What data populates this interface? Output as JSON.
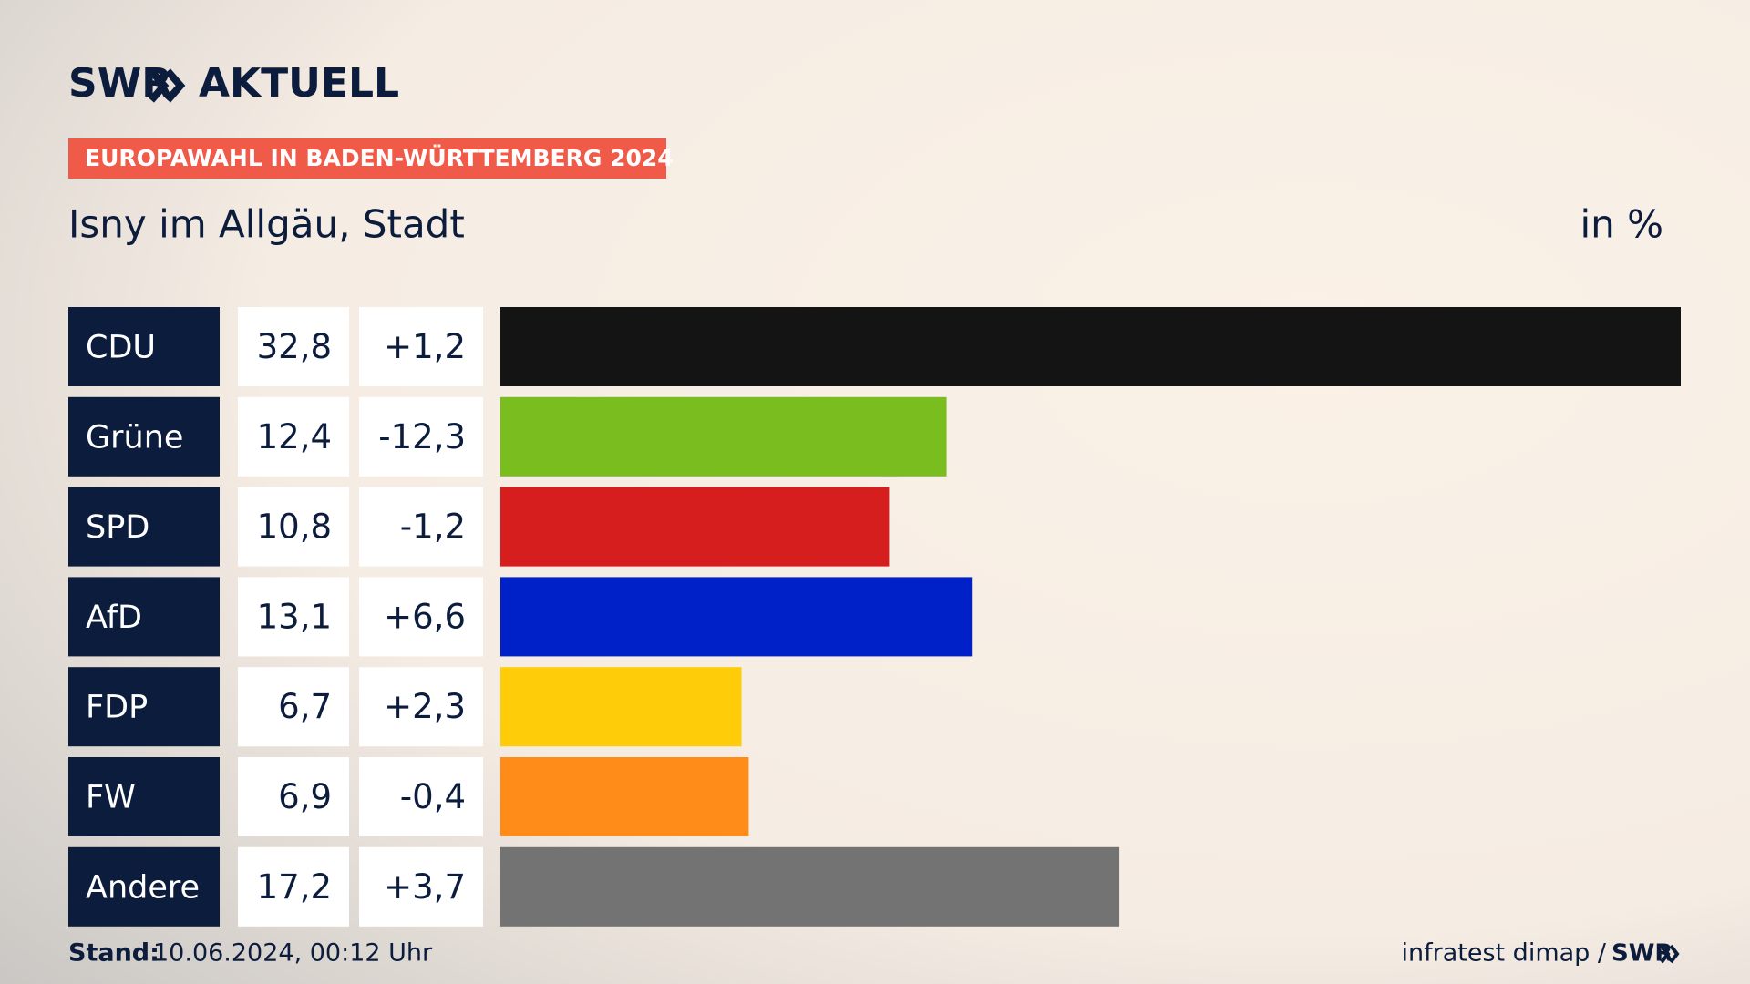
{
  "header": {
    "logo_left": "SWR",
    "logo_right": "AKTUELL"
  },
  "chart_data": {
    "type": "bar",
    "badge": "EUROPAWAHL IN BADEN-WÜRTTEMBERG 2024",
    "title": "Isny im Allgäu, Stadt",
    "unit": "in %",
    "categories": [
      "CDU",
      "Grüne",
      "SPD",
      "AfD",
      "FDP",
      "FW",
      "Andere"
    ],
    "values": [
      32.8,
      12.4,
      10.8,
      13.1,
      6.7,
      6.9,
      17.2
    ],
    "value_labels": [
      "32,8",
      "12,4",
      "10,8",
      "13,1",
      "6,7",
      "6,9",
      "17,2"
    ],
    "change": [
      1.2,
      -12.3,
      -1.2,
      6.6,
      2.3,
      -0.4,
      3.7
    ],
    "change_labels": [
      "+1,2",
      "-12,3",
      "-1,2",
      "+6,6",
      "+2,3",
      "-0,4",
      "+3,7"
    ],
    "colors": [
      "#141414",
      "#7abd1f",
      "#d61e1e",
      "#0020c8",
      "#ffcc09",
      "#ff8c18",
      "#737373"
    ]
  },
  "footer": {
    "stand_label": "Stand:",
    "stand_value": "10.06.2024, 00:12 Uhr",
    "source": "infratest dimap /",
    "source_logo": "SWR"
  }
}
